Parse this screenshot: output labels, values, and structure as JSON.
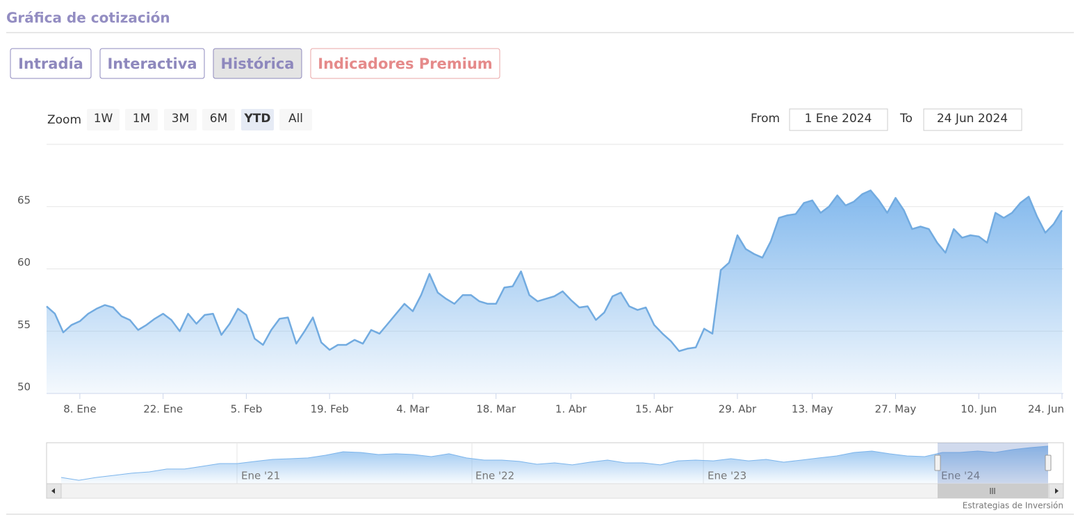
{
  "header": {
    "title": "Gráfica de cotización"
  },
  "tabs": {
    "items": [
      "Intradía",
      "Interactiva",
      "Histórica",
      "Indicadores Premium"
    ],
    "active": 2
  },
  "zoom": {
    "label": "Zoom",
    "buttons": [
      "1W",
      "1M",
      "3M",
      "6M",
      "YTD",
      "All"
    ],
    "selected": 4
  },
  "range": {
    "from_label": "From",
    "from": "1 Ene 2024",
    "to_label": "To",
    "to": "24 Jun 2024"
  },
  "chart_data": {
    "type": "area",
    "color": "#7cb5ec",
    "grid": true,
    "x": [
      "2024-01-02",
      "2024-01-03",
      "2024-01-04",
      "2024-01-05",
      "2024-01-08",
      "2024-01-09",
      "2024-01-10",
      "2024-01-11",
      "2024-01-12",
      "2024-01-15",
      "2024-01-16",
      "2024-01-17",
      "2024-01-18",
      "2024-01-19",
      "2024-01-22",
      "2024-01-23",
      "2024-01-24",
      "2024-01-25",
      "2024-01-26",
      "2024-01-29",
      "2024-01-30",
      "2024-01-31",
      "2024-02-01",
      "2024-02-02",
      "2024-02-05",
      "2024-02-06",
      "2024-02-07",
      "2024-02-08",
      "2024-02-09",
      "2024-02-12",
      "2024-02-13",
      "2024-02-14",
      "2024-02-15",
      "2024-02-16",
      "2024-02-19",
      "2024-02-20",
      "2024-02-21",
      "2024-02-22",
      "2024-02-23",
      "2024-02-26",
      "2024-02-27",
      "2024-02-28",
      "2024-02-29",
      "2024-03-01",
      "2024-03-04",
      "2024-03-05",
      "2024-03-06",
      "2024-03-07",
      "2024-03-08",
      "2024-03-11",
      "2024-03-12",
      "2024-03-13",
      "2024-03-14",
      "2024-03-15",
      "2024-03-18",
      "2024-03-19",
      "2024-03-20",
      "2024-03-21",
      "2024-03-22",
      "2024-03-25",
      "2024-03-26",
      "2024-03-27",
      "2024-03-28",
      "2024-04-01",
      "2024-04-02",
      "2024-04-03",
      "2024-04-04",
      "2024-04-05",
      "2024-04-08",
      "2024-04-09",
      "2024-04-10",
      "2024-04-11",
      "2024-04-12",
      "2024-04-15",
      "2024-04-16",
      "2024-04-17",
      "2024-04-18",
      "2024-04-19",
      "2024-04-22",
      "2024-04-23",
      "2024-04-24",
      "2024-04-25",
      "2024-04-26",
      "2024-04-29",
      "2024-04-30",
      "2024-05-02",
      "2024-05-03",
      "2024-05-06",
      "2024-05-07",
      "2024-05-08",
      "2024-05-09",
      "2024-05-10",
      "2024-05-13",
      "2024-05-14",
      "2024-05-15",
      "2024-05-16",
      "2024-05-17",
      "2024-05-20",
      "2024-05-21",
      "2024-05-22",
      "2024-05-23",
      "2024-05-24",
      "2024-05-27",
      "2024-05-28",
      "2024-05-29",
      "2024-05-30",
      "2024-05-31",
      "2024-06-03",
      "2024-06-04",
      "2024-06-05",
      "2024-06-06",
      "2024-06-07",
      "2024-06-10",
      "2024-06-11",
      "2024-06-12",
      "2024-06-13",
      "2024-06-14",
      "2024-06-17",
      "2024-06-18",
      "2024-06-19",
      "2024-06-20",
      "2024-06-21",
      "2024-06-24"
    ],
    "values": [
      57.0,
      56.4,
      54.9,
      55.5,
      55.8,
      56.4,
      56.8,
      57.1,
      56.9,
      56.2,
      55.9,
      55.1,
      55.5,
      56.0,
      56.4,
      55.9,
      55.0,
      56.4,
      55.6,
      56.3,
      56.4,
      54.7,
      55.6,
      56.8,
      56.3,
      54.4,
      53.9,
      55.1,
      56.0,
      56.1,
      54.0,
      55.0,
      56.1,
      54.1,
      53.5,
      53.9,
      53.9,
      54.3,
      54.0,
      55.1,
      54.8,
      55.6,
      56.4,
      57.2,
      56.6,
      57.9,
      59.6,
      58.1,
      57.6,
      57.2,
      57.9,
      57.9,
      57.4,
      57.2,
      57.2,
      58.5,
      58.6,
      59.8,
      57.9,
      57.4,
      57.6,
      57.8,
      58.2,
      57.5,
      56.9,
      57.0,
      55.9,
      56.5,
      57.8,
      58.1,
      57.0,
      56.7,
      56.9,
      55.5,
      54.8,
      54.2,
      53.4,
      53.6,
      53.7,
      55.2,
      54.8,
      59.9,
      60.5,
      62.7,
      61.6,
      61.2,
      60.9,
      62.2,
      64.1,
      64.3,
      64.4,
      65.3,
      65.5,
      64.5,
      65.0,
      65.9,
      65.1,
      65.4,
      66.0,
      66.3,
      65.5,
      64.5,
      65.7,
      64.7,
      63.2,
      63.4,
      63.2,
      62.1,
      61.3,
      63.2,
      62.5,
      62.7,
      62.6,
      62.1,
      64.5,
      64.1,
      64.5,
      65.3,
      65.8,
      64.2,
      62.9,
      63.6,
      64.7
    ],
    "ylim": [
      50,
      70
    ],
    "yticks": [
      50,
      55,
      60,
      65
    ],
    "xticks": [
      {
        "value": "2024-01-08",
        "label": "8. Ene"
      },
      {
        "value": "2024-01-22",
        "label": "22. Ene"
      },
      {
        "value": "2024-02-05",
        "label": "5. Feb"
      },
      {
        "value": "2024-02-19",
        "label": "19. Feb"
      },
      {
        "value": "2024-03-04",
        "label": "4. Mar"
      },
      {
        "value": "2024-03-18",
        "label": "18. Mar"
      },
      {
        "value": "2024-04-01",
        "label": "1. Abr"
      },
      {
        "value": "2024-04-15",
        "label": "15. Abr"
      },
      {
        "value": "2024-04-29",
        "label": "29. Abr"
      },
      {
        "value": "2024-05-13",
        "label": "13. May"
      },
      {
        "value": "2024-05-27",
        "label": "27. May"
      },
      {
        "value": "2024-06-10",
        "label": "10. Jun"
      },
      {
        "value": "2024-06-24",
        "label": "24. Jun"
      }
    ]
  },
  "navigator": {
    "labels": [
      "Ene '21",
      "Ene '22",
      "Ene '23",
      "Ene '24"
    ],
    "ylim": [
      35,
      67
    ],
    "values": [
      39.1,
      36.7,
      39.1,
      40.8,
      42.6,
      43.7,
      46.1,
      46.1,
      48.4,
      50.7,
      50.7,
      52.5,
      54.2,
      54.8,
      55.4,
      57.7,
      60.6,
      60.0,
      58.3,
      58.9,
      58.3,
      56.5,
      58.9,
      55.4,
      53.6,
      53.6,
      52.5,
      50.1,
      51.3,
      49.6,
      51.9,
      53.6,
      51.3,
      51.3,
      49.6,
      53.0,
      53.6,
      53.0,
      54.8,
      53.0,
      54.2,
      51.9,
      53.6,
      55.4,
      57.1,
      60.0,
      61.2,
      58.9,
      57.1,
      56.5,
      60.0,
      60.0,
      61.2,
      60.0,
      62.4,
      64.1,
      65.3
    ]
  },
  "credits": "Estrategias de Inversión"
}
